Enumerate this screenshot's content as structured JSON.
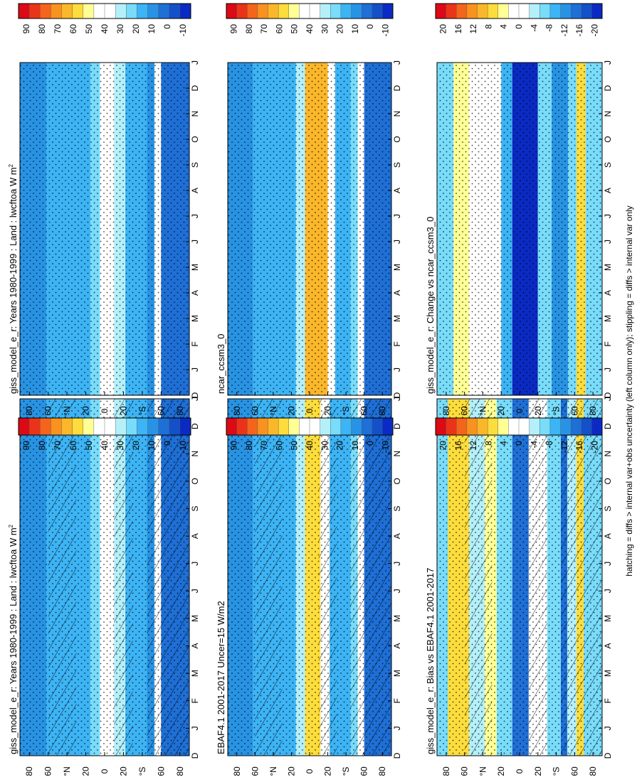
{
  "footer_note": "hatching = diffs > internal var+obs uncertainty (left column only); stippling = diffs > internal var only",
  "chart_data": {
    "type": "heatmap",
    "layout": "3 rows x 2 columns of latitude-month Hovmoller panels, figure rotated 90 degrees",
    "months": [
      "J",
      "F",
      "M",
      "A",
      "M",
      "J",
      "J",
      "A",
      "S",
      "O",
      "N",
      "D"
    ],
    "month_axis_ticks": [
      "D",
      "J",
      "F",
      "M",
      "A",
      "M",
      "J",
      "J",
      "A",
      "S",
      "O",
      "N",
      "D",
      "J"
    ],
    "lat_tick_labels": [
      "80",
      "60",
      "°N",
      "20",
      "0",
      "20",
      "°S",
      "60",
      "80"
    ],
    "lat_tick_values": [
      80,
      60,
      40,
      20,
      0,
      -20,
      -40,
      -60,
      -80
    ],
    "colorbars": {
      "absolute": {
        "labels": [
          "90",
          "80",
          "70",
          "60",
          "50",
          "40",
          "30",
          "20",
          "10",
          "0",
          "-10"
        ],
        "colors": [
          "#db0a16",
          "#ea3318",
          "#f4651b",
          "#f9921f",
          "#fbb72a",
          "#fddd3c",
          "#ffff96",
          "#ffffff",
          "#ffffff",
          "#b4f0fa",
          "#78dcfa",
          "#3cb4f5",
          "#2893e4",
          "#1e6fd6",
          "#1450c8",
          "#0a2ac3"
        ]
      },
      "difference": {
        "labels": [
          "20",
          "16",
          "12",
          "8",
          "4",
          "0",
          "-4",
          "-8",
          "-12",
          "-16",
          "-20"
        ],
        "colors": [
          "#db0a16",
          "#ea3318",
          "#f4651b",
          "#f9921f",
          "#fbb72a",
          "#fddd3c",
          "#ffff96",
          "#ffffff",
          "#ffffff",
          "#b4f0fa",
          "#78dcfa",
          "#3cb4f5",
          "#2893e4",
          "#1e6fd6",
          "#1450c8",
          "#0a2ac3"
        ]
      }
    },
    "panels": [
      {
        "id": "giss-left",
        "title": "giss_model_e_r: Years 1980-1999 : Land : lwcftoa W m",
        "units_superscript": "2",
        "colorbar": "absolute",
        "hatching": true,
        "bands": [
          {
            "from": 90,
            "to": 62,
            "value": 15
          },
          {
            "from": 62,
            "to": 15,
            "value": 20
          },
          {
            "from": 15,
            "to": 5,
            "value": 25
          },
          {
            "from": 5,
            "to": -10,
            "value": 38
          },
          {
            "from": -10,
            "to": -22,
            "value": 28
          },
          {
            "from": -22,
            "to": -45,
            "value": 17
          },
          {
            "from": -45,
            "to": -53,
            "value": 12
          },
          {
            "from": -53,
            "to": -60,
            "value": 35
          },
          {
            "from": -60,
            "to": -90,
            "value": 5
          }
        ]
      },
      {
        "id": "giss-right",
        "title": "giss_model_e_r: Years 1980-1999 : Land : lwcftoa W m",
        "units_superscript": "2",
        "colorbar": "absolute",
        "hatching": false,
        "bands": [
          {
            "from": 90,
            "to": 62,
            "value": 15
          },
          {
            "from": 62,
            "to": 15,
            "value": 20
          },
          {
            "from": 15,
            "to": 5,
            "value": 25
          },
          {
            "from": 5,
            "to": -10,
            "value": 38
          },
          {
            "from": -10,
            "to": -22,
            "value": 28
          },
          {
            "from": -22,
            "to": -45,
            "value": 17
          },
          {
            "from": -45,
            "to": -53,
            "value": 12
          },
          {
            "from": -53,
            "to": -60,
            "value": 35
          },
          {
            "from": -60,
            "to": -90,
            "value": 5
          }
        ]
      },
      {
        "id": "ebaf-left",
        "title": "EBAF4.1 2001-2017 Uncer=15 W/m2",
        "units_superscript": "",
        "colorbar": "absolute",
        "hatching": true,
        "bands": [
          {
            "from": 90,
            "to": 62,
            "value": 15
          },
          {
            "from": 62,
            "to": 15,
            "value": 18
          },
          {
            "from": 15,
            "to": 5,
            "value": 30
          },
          {
            "from": 5,
            "to": -12,
            "value": 55
          },
          {
            "from": -12,
            "to": -22,
            "value": 35
          },
          {
            "from": -22,
            "to": -45,
            "value": 20
          },
          {
            "from": -45,
            "to": -53,
            "value": 25
          },
          {
            "from": -53,
            "to": -60,
            "value": 38
          },
          {
            "from": -60,
            "to": -90,
            "value": 8
          }
        ]
      },
      {
        "id": "ncar-right",
        "title": "ncar_ccsm3_0",
        "units_superscript": "",
        "colorbar": "absolute",
        "hatching": false,
        "bands": [
          {
            "from": 90,
            "to": 62,
            "value": 15
          },
          {
            "from": 62,
            "to": 15,
            "value": 18
          },
          {
            "from": 15,
            "to": 5,
            "value": 30
          },
          {
            "from": 5,
            "to": -20,
            "value": 62
          },
          {
            "from": -20,
            "to": -28,
            "value": 35
          },
          {
            "from": -28,
            "to": -45,
            "value": 20
          },
          {
            "from": -45,
            "to": -53,
            "value": 25
          },
          {
            "from": -53,
            "to": -60,
            "value": 38
          },
          {
            "from": -60,
            "to": -90,
            "value": 8
          }
        ]
      },
      {
        "id": "bias-left",
        "title": "giss_model_e_r: Bias vs EBAF4.1 2001-2017",
        "units_superscript": "",
        "colorbar": "difference",
        "hatching": true,
        "bands": [
          {
            "from": 90,
            "to": 78,
            "value": -6
          },
          {
            "from": 78,
            "to": 55,
            "value": 6
          },
          {
            "from": 55,
            "to": 38,
            "value": -3
          },
          {
            "from": 38,
            "to": 25,
            "value": 4
          },
          {
            "from": 25,
            "to": 8,
            "value": -6
          },
          {
            "from": 8,
            "to": -10,
            "value": -14
          },
          {
            "from": -10,
            "to": -30,
            "value": 2
          },
          {
            "from": -30,
            "to": -45,
            "value": -6
          },
          {
            "from": -45,
            "to": -52,
            "value": -14
          },
          {
            "from": -52,
            "to": -62,
            "value": -4
          },
          {
            "from": -62,
            "to": -70,
            "value": 6
          },
          {
            "from": -70,
            "to": -90,
            "value": -6
          }
        ]
      },
      {
        "id": "change-right",
        "title": "giss_model_e_r: Change vs ncar_ccsm3_0",
        "units_superscript": "",
        "colorbar": "difference",
        "hatching": false,
        "bands": [
          {
            "from": 90,
            "to": 72,
            "value": -6
          },
          {
            "from": 72,
            "to": 55,
            "value": 3
          },
          {
            "from": 55,
            "to": 35,
            "value": -2
          },
          {
            "from": 35,
            "to": 20,
            "value": 0
          },
          {
            "from": 20,
            "to": 8,
            "value": -8
          },
          {
            "from": 8,
            "to": -20,
            "value": -18
          },
          {
            "from": -20,
            "to": -35,
            "value": -6
          },
          {
            "from": -35,
            "to": -53,
            "value": -10
          },
          {
            "from": -53,
            "to": -62,
            "value": -6
          },
          {
            "from": -62,
            "to": -72,
            "value": 6
          },
          {
            "from": -72,
            "to": -90,
            "value": -5
          }
        ]
      }
    ]
  }
}
